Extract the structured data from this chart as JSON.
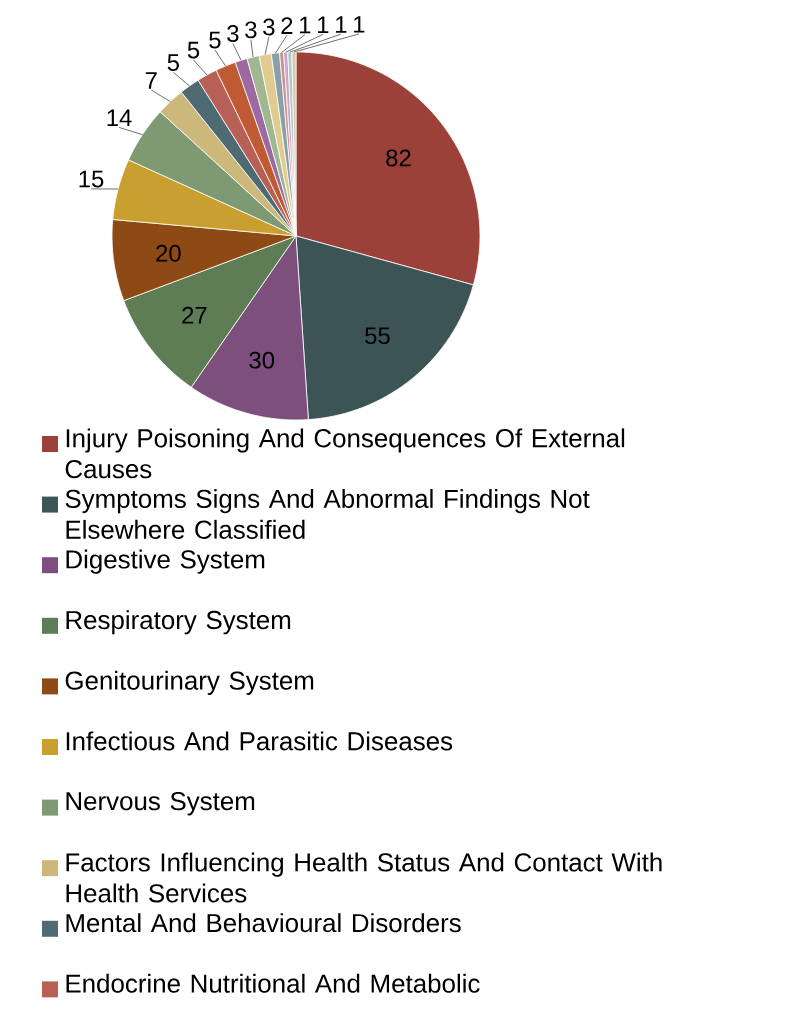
{
  "chart_data": {
    "type": "pie",
    "categories": [
      "Injury Poisoning And Consequences Of External Causes",
      "Symptoms Signs And Abnormal Findings Not Elsewhere Classified",
      "Digestive System",
      "Respiratory System",
      "Genitourinary System",
      "Infectious And Parasitic Diseases",
      "Nervous System",
      "Factors Influencing Health Status And Contact With Health Services",
      "Mental And Behavioural Disorders",
      "Endocrine Nutritional And Metabolic",
      null,
      null,
      null,
      null,
      null,
      null,
      null,
      null,
      null
    ],
    "values": [
      82,
      55,
      30,
      27,
      20,
      15,
      14,
      7,
      5,
      5,
      5,
      3,
      3,
      3,
      2,
      1,
      1,
      1,
      1
    ],
    "colors": [
      "#9c4139",
      "#3d5457",
      "#7d4f7d",
      "#5e7d55",
      "#8e4a14",
      "#c9a030",
      "#7d9a72",
      "#cbb87a",
      "#4e6b73",
      "#b86055",
      "#c05a32",
      "#9c6aa0",
      "#a0b890",
      "#e0cc90",
      "#8aa0a8",
      "#d09090",
      "#c8a8c8",
      "#b0c8d0",
      "#d8c8a0"
    ],
    "data_labels": true,
    "legend": "bottom"
  }
}
